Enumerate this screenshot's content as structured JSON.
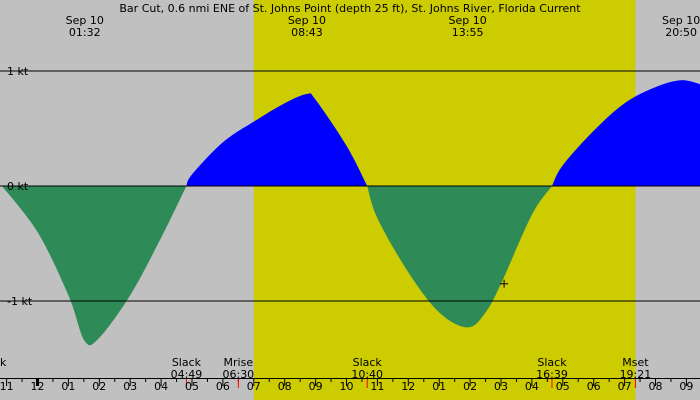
{
  "chart_data": {
    "type": "area",
    "title": "Bar Cut, 0.6 nmi ENE of St. Johns Point (depth 25 ft), St. Johns River, Florida Current",
    "xlabel": "",
    "ylabel": "",
    "x_unit": "hour of day (Sep 10)",
    "xlim": [
      -1.15,
      21.5
    ],
    "ylim": [
      -1.5,
      1.5
    ],
    "y_ticks": [
      {
        "value": 1,
        "label": "1 kt"
      },
      {
        "value": 0,
        "label": "0 kt"
      },
      {
        "value": -1,
        "label": "-1 kt"
      }
    ],
    "daylight": {
      "start": 7.0,
      "end": 19.35
    },
    "colors": {
      "night": "#c0c0c0",
      "day": "#cccc00",
      "flood": "#0000ff",
      "ebb": "#2e8b57",
      "tick_red": "#ff0000"
    },
    "top_labels": [
      {
        "time": 1.53,
        "date": "Sep 10",
        "clock": "01:32"
      },
      {
        "time": 8.72,
        "date": "Sep 10",
        "clock": "08:43"
      },
      {
        "time": 13.92,
        "date": "Sep 10",
        "clock": "13:55"
      },
      {
        "time": 20.83,
        "date": "Sep 10",
        "clock": "20:50"
      }
    ],
    "events": [
      {
        "time": 4.82,
        "label": "Slack",
        "clock": "04:49"
      },
      {
        "time": 6.5,
        "label": "Mrise",
        "clock": "06:30"
      },
      {
        "time": 10.67,
        "label": "Slack",
        "clock": "10:40"
      },
      {
        "time": 16.65,
        "label": "Slack",
        "clock": "16:39"
      },
      {
        "time": 19.35,
        "label": "Mset",
        "clock": "19:21"
      }
    ],
    "bottom_left_label": "k",
    "hour_ticks": [
      "11",
      "12",
      "01",
      "02",
      "03",
      "04",
      "05",
      "06",
      "07",
      "08",
      "09",
      "10",
      "11",
      "12",
      "01",
      "02",
      "03",
      "04",
      "05",
      "06",
      "07",
      "08",
      "09"
    ],
    "red_tick_hours": [
      4.82,
      6.5,
      10.67,
      16.65,
      19.35
    ],
    "series": [
      {
        "x": [
          -1.15,
          0,
          1,
          1.53,
          2,
          3,
          4,
          4.82,
          5,
          6,
          7,
          8,
          8.72,
          9,
          10,
          10.67,
          11,
          12,
          13,
          13.92,
          14.5,
          15,
          16,
          16.65,
          17,
          18,
          19,
          20,
          20.83,
          21.5
        ],
        "values": [
          0,
          -0.4,
          -0.95,
          -1.35,
          -1.32,
          -0.95,
          -0.45,
          0,
          0.1,
          0.38,
          0.56,
          0.72,
          0.8,
          0.75,
          0.35,
          0,
          -0.28,
          -0.75,
          -1.1,
          -1.23,
          -1.1,
          -0.85,
          -0.25,
          0,
          0.18,
          0.48,
          0.72,
          0.86,
          0.92,
          0.88
        ]
      }
    ],
    "cursor_marker": {
      "x": 15.1,
      "y": -0.85
    }
  }
}
